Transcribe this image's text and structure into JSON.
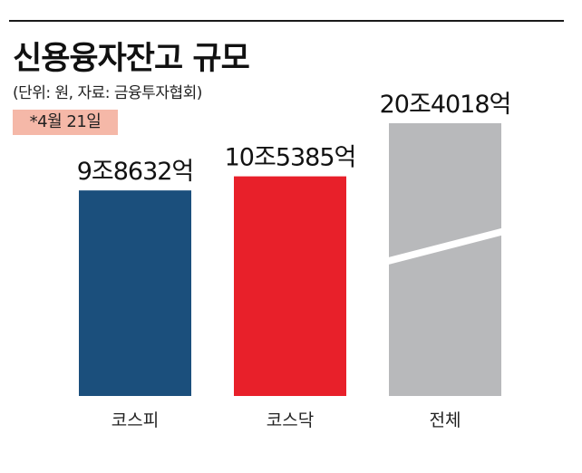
{
  "title": "신용융자잔고 규모",
  "subtitle": "(단위: 원, 자료: 금융투자협회)",
  "date_note": "*4월 21일",
  "chart_data": {
    "type": "bar",
    "title": "신용융자잔고 규모",
    "categories": [
      "코스피",
      "코스닥",
      "전체"
    ],
    "values": [
      98632,
      105385,
      204018
    ],
    "value_labels": [
      "9조8632억",
      "10조5385억",
      "20조4018억"
    ],
    "unit": "억 원",
    "colors": [
      "#1b4f7c",
      "#e8202a",
      "#b8b9bb"
    ],
    "axis_break": {
      "series_index": 2
    },
    "xlabel": "",
    "ylabel": "",
    "grid": false,
    "legend": "none"
  }
}
